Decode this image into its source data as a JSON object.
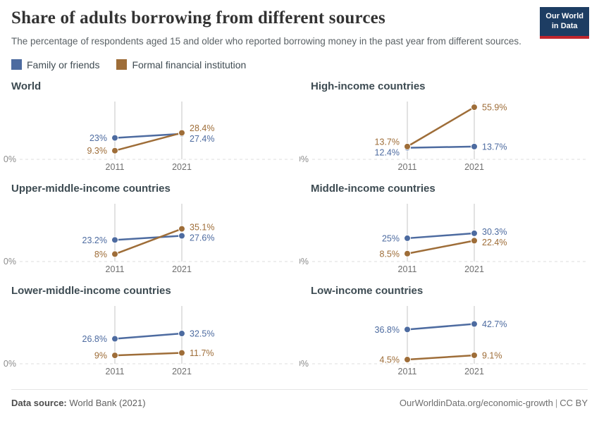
{
  "header": {
    "title": "Share of adults borrowing from different sources",
    "subtitle": "The percentage of respondents aged 15 and older who reported borrowing money in the past year from different sources.",
    "logo_line1": "Our World",
    "logo_line2": "in Data"
  },
  "legend": [
    {
      "label": "Family or friends",
      "color": "#4d6ba0"
    },
    {
      "label": "Formal financial institution",
      "color": "#9e6d38"
    }
  ],
  "chart_data": {
    "type": "line",
    "x": [
      "2011",
      "2021"
    ],
    "ylim": [
      0,
      62
    ],
    "zero_label": "0%",
    "grid": "zero-line-only",
    "legend_position": "top-left",
    "panels": [
      {
        "title": "World",
        "series": [
          {
            "name": "Family or friends",
            "values": [
              23,
              27.4
            ],
            "labels": [
              "23%",
              "27.4%"
            ]
          },
          {
            "name": "Formal financial institution",
            "values": [
              9.3,
              28.4
            ],
            "labels": [
              "9.3%",
              "28.4%"
            ]
          }
        ]
      },
      {
        "title": "High-income countries",
        "series": [
          {
            "name": "Family or friends",
            "values": [
              12.4,
              13.7
            ],
            "labels": [
              "12.4%",
              "13.7%"
            ]
          },
          {
            "name": "Formal financial institution",
            "values": [
              13.7,
              55.9
            ],
            "labels": [
              "13.7%",
              "55.9%"
            ]
          }
        ]
      },
      {
        "title": "Upper-middle-income countries",
        "series": [
          {
            "name": "Family or friends",
            "values": [
              23.2,
              27.6
            ],
            "labels": [
              "23.2%",
              "27.6%"
            ]
          },
          {
            "name": "Formal financial institution",
            "values": [
              8,
              35.1
            ],
            "labels": [
              "8%",
              "35.1%"
            ]
          }
        ]
      },
      {
        "title": "Middle-income countries",
        "series": [
          {
            "name": "Family or friends",
            "values": [
              25,
              30.3
            ],
            "labels": [
              "25%",
              "30.3%"
            ]
          },
          {
            "name": "Formal financial institution",
            "values": [
              8.5,
              22.4
            ],
            "labels": [
              "8.5%",
              "22.4%"
            ]
          }
        ]
      },
      {
        "title": "Lower-middle-income countries",
        "series": [
          {
            "name": "Family or friends",
            "values": [
              26.8,
              32.5
            ],
            "labels": [
              "26.8%",
              "32.5%"
            ]
          },
          {
            "name": "Formal financial institution",
            "values": [
              9,
              11.7
            ],
            "labels": [
              "9%",
              "11.7%"
            ]
          }
        ]
      },
      {
        "title": "Low-income countries",
        "series": [
          {
            "name": "Family or friends",
            "values": [
              36.8,
              42.7
            ],
            "labels": [
              "36.8%",
              "42.7%"
            ]
          },
          {
            "name": "Formal financial institution",
            "values": [
              4.5,
              9.1
            ],
            "labels": [
              "4.5%",
              "9.1%"
            ]
          }
        ]
      }
    ]
  },
  "footer": {
    "source_label": "Data source:",
    "source_value": "World Bank (2021)",
    "credit_site": "OurWorldinData.org/economic-growth",
    "separator": "|",
    "credit_license": "CC BY"
  }
}
